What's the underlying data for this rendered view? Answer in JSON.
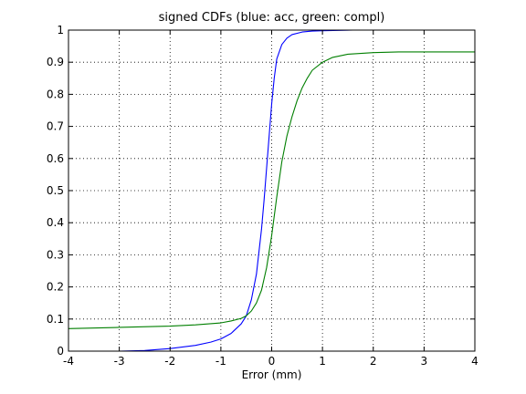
{
  "chart_data": {
    "type": "line",
    "title": "signed CDFs (blue: acc, green: compl)",
    "xlabel": "Error (mm)",
    "ylabel": "",
    "xlim": [
      -4,
      4
    ],
    "ylim": [
      0,
      1
    ],
    "grid": true,
    "x_ticks": [
      -4,
      -3,
      -2,
      -1,
      0,
      1,
      2,
      3,
      4
    ],
    "y_ticks": [
      0,
      0.1,
      0.2,
      0.3,
      0.4,
      0.5,
      0.6,
      0.7,
      0.8,
      0.9,
      1
    ],
    "x_tick_labels": [
      "-4",
      "-3",
      "-2",
      "-1",
      "0",
      "1",
      "2",
      "3",
      "4"
    ],
    "y_tick_labels": [
      "0",
      "0.1",
      "0.2",
      "0.3",
      "0.4",
      "0.5",
      "0.6",
      "0.7",
      "0.8",
      "0.9",
      "1"
    ],
    "colors": {
      "acc": "#0000ff",
      "compl": "#007f00"
    },
    "series": [
      {
        "values_xy": [
          [
            -3.0,
            0.0
          ],
          [
            -2.5,
            0.002
          ],
          [
            -2.0,
            0.008
          ],
          [
            -1.5,
            0.018
          ],
          [
            -1.2,
            0.028
          ],
          [
            -1.0,
            0.038
          ],
          [
            -0.8,
            0.055
          ],
          [
            -0.6,
            0.085
          ],
          [
            -0.5,
            0.11
          ],
          [
            -0.4,
            0.16
          ],
          [
            -0.3,
            0.24
          ],
          [
            -0.2,
            0.38
          ],
          [
            -0.15,
            0.47
          ],
          [
            -0.1,
            0.57
          ],
          [
            -0.05,
            0.67
          ],
          [
            0.0,
            0.77
          ],
          [
            0.05,
            0.85
          ],
          [
            0.1,
            0.91
          ],
          [
            0.2,
            0.955
          ],
          [
            0.3,
            0.975
          ],
          [
            0.4,
            0.986
          ],
          [
            0.6,
            0.994
          ],
          [
            0.8,
            0.997
          ],
          [
            1.0,
            0.998
          ],
          [
            1.6,
            1.0
          ],
          [
            4.0,
            1.0
          ]
        ]
      },
      {
        "values_xy": [
          [
            -4.0,
            0.07
          ],
          [
            -3.0,
            0.074
          ],
          [
            -2.0,
            0.078
          ],
          [
            -1.5,
            0.082
          ],
          [
            -1.0,
            0.088
          ],
          [
            -0.8,
            0.094
          ],
          [
            -0.6,
            0.102
          ],
          [
            -0.5,
            0.11
          ],
          [
            -0.4,
            0.125
          ],
          [
            -0.3,
            0.15
          ],
          [
            -0.2,
            0.19
          ],
          [
            -0.1,
            0.26
          ],
          [
            0.0,
            0.36
          ],
          [
            0.1,
            0.48
          ],
          [
            0.2,
            0.59
          ],
          [
            0.3,
            0.67
          ],
          [
            0.4,
            0.73
          ],
          [
            0.5,
            0.78
          ],
          [
            0.6,
            0.82
          ],
          [
            0.7,
            0.85
          ],
          [
            0.8,
            0.875
          ],
          [
            1.0,
            0.9
          ],
          [
            1.2,
            0.915
          ],
          [
            1.5,
            0.925
          ],
          [
            2.0,
            0.93
          ],
          [
            2.5,
            0.932
          ],
          [
            3.0,
            0.932
          ],
          [
            4.0,
            0.932
          ]
        ]
      }
    ]
  }
}
